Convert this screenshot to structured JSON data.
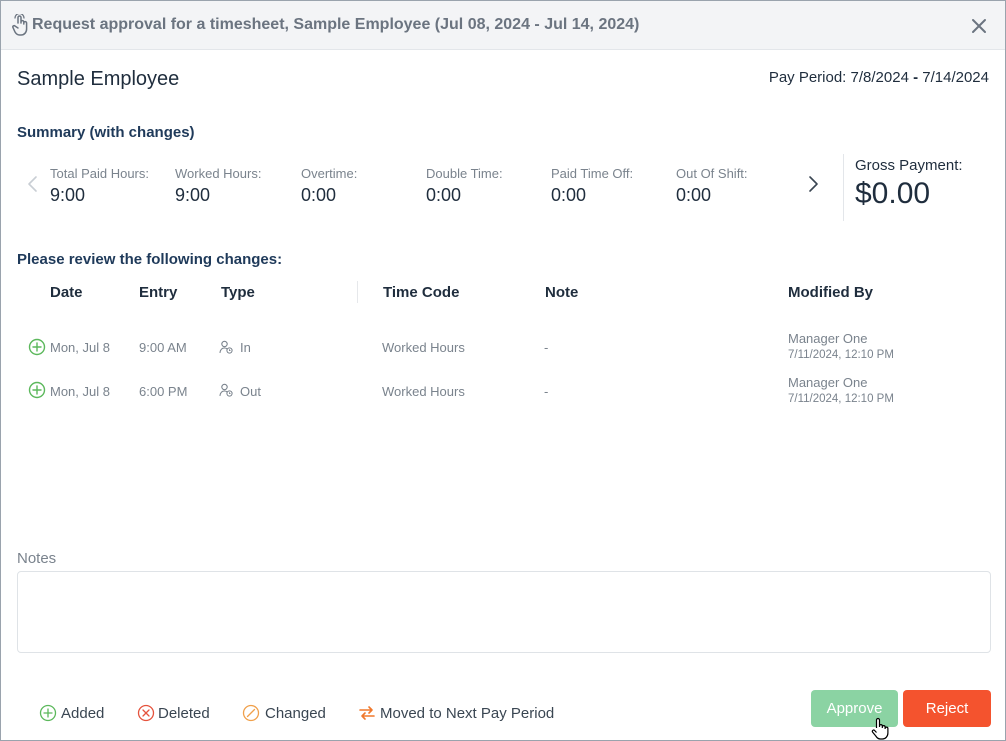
{
  "dialog": {
    "title": "Request approval for a timesheet, Sample Employee (Jul 08, 2024 - Jul 14, 2024)",
    "title_icon": "hand-pointer-icon",
    "close_icon": "close-icon"
  },
  "employee": {
    "name": "Sample Employee",
    "pay_period_label": "Pay Period:",
    "pay_period_start": "7/8/2024",
    "pay_period_sep": "-",
    "pay_period_end": "7/14/2024"
  },
  "summary": {
    "title": "Summary (with changes)",
    "metrics": [
      {
        "label": "Total Paid Hours:",
        "value": "9:00"
      },
      {
        "label": "Worked Hours:",
        "value": "9:00"
      },
      {
        "label": "Overtime:",
        "value": "0:00"
      },
      {
        "label": "Double Time:",
        "value": "0:00"
      },
      {
        "label": "Paid Time Off:",
        "value": "0:00"
      },
      {
        "label": "Out Of Shift:",
        "value": "0:00"
      }
    ],
    "gross_payment_label": "Gross Payment:",
    "gross_payment_value": "$0.00"
  },
  "review": {
    "title": "Please review the following changes:",
    "columns": {
      "date": "Date",
      "entry": "Entry",
      "type": "Type",
      "time_code": "Time Code",
      "note": "Note",
      "modified_by": "Modified By"
    },
    "rows": [
      {
        "status": "added",
        "date": "Mon, Jul 8",
        "entry": "9:00 AM",
        "type": "In",
        "time_code": "Worked Hours",
        "note": "-",
        "modified_by": "Manager One",
        "modified_at": "7/11/2024, 12:10 PM"
      },
      {
        "status": "added",
        "date": "Mon, Jul 8",
        "entry": "6:00 PM",
        "type": "Out",
        "time_code": "Worked Hours",
        "note": "-",
        "modified_by": "Manager One",
        "modified_at": "7/11/2024, 12:10 PM"
      }
    ]
  },
  "notes": {
    "label": "Notes",
    "value": ""
  },
  "legend": {
    "added": "Added",
    "deleted": "Deleted",
    "changed": "Changed",
    "moved": "Moved to Next Pay Period"
  },
  "actions": {
    "approve_label": "Approve",
    "reject_label": "Reject"
  },
  "colors": {
    "added": "#5cb85c",
    "deleted": "#e5533d",
    "changed": "#f0a04b",
    "moved": "#f0782c",
    "approve": "#8bd3a3",
    "reject": "#f4532e"
  }
}
